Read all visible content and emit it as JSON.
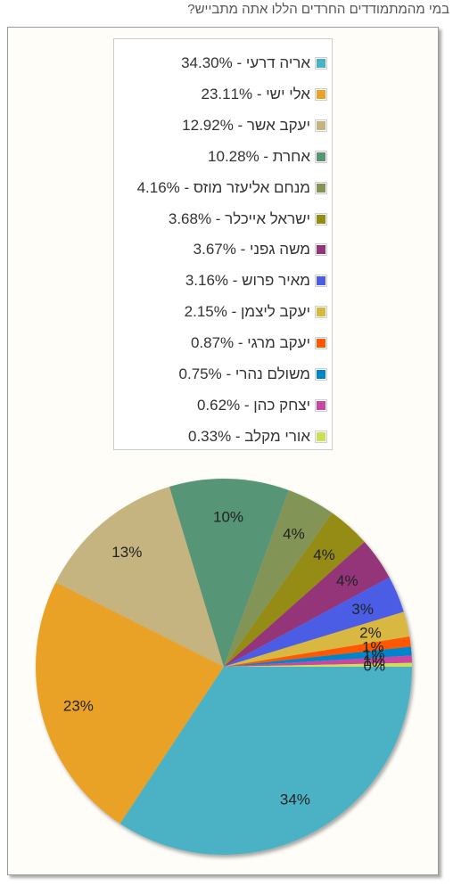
{
  "question": "במי מהמתמודדים החרדים הללו אתה מתבייש?",
  "chart_data": {
    "type": "pie",
    "title": "",
    "legend_position": "top",
    "slices": [
      {
        "name": "אריה דרעי",
        "value": 34.3,
        "label": "34%",
        "legend": "אריה דרעי - 34.30%",
        "color": "#4bb2c5"
      },
      {
        "name": "אלי ישי",
        "value": 23.11,
        "label": "23%",
        "legend": "אלי ישי - 23.11%",
        "color": "#eaa228"
      },
      {
        "name": "יעקב אשר",
        "value": 12.92,
        "label": "13%",
        "legend": "יעקב אשר - 12.92%",
        "color": "#c5b47f"
      },
      {
        "name": "אחרת",
        "value": 10.28,
        "label": "10%",
        "legend": "אחרת - 10.28%",
        "color": "#579575"
      },
      {
        "name": "מנחם אליעזר מוזס",
        "value": 4.16,
        "label": "4%",
        "legend": "מנחם אליעזר מוזס - 4.16%",
        "color": "#839557"
      },
      {
        "name": "ישראל אייכלר",
        "value": 3.68,
        "label": "4%",
        "legend": "ישראל אייכלר - 3.68%",
        "color": "#958c12"
      },
      {
        "name": "משה גפני",
        "value": 3.67,
        "label": "4%",
        "legend": "משה גפני - 3.67%",
        "color": "#953579"
      },
      {
        "name": "מאיר פרוש",
        "value": 3.16,
        "label": "3%",
        "legend": "מאיר פרוש - 3.16%",
        "color": "#4b5de4"
      },
      {
        "name": "יעקב ליצמן",
        "value": 2.15,
        "label": "2%",
        "legend": "יעקב ליצמן - 2.15%",
        "color": "#d8b83f"
      },
      {
        "name": "יעקב מרגי",
        "value": 0.87,
        "label": "1%",
        "legend": "יעקב מרגי - 0.87%",
        "color": "#ff5800"
      },
      {
        "name": "משולם נהרי",
        "value": 0.75,
        "label": "1%",
        "legend": "משולם נהרי - 0.75%",
        "color": "#0085cc"
      },
      {
        "name": "יצחק כהן",
        "value": 0.62,
        "label": "1%",
        "legend": "יצחק כהן - 0.62%",
        "color": "#c747a3"
      },
      {
        "name": "אורי מקלב",
        "value": 0.33,
        "label": "0%",
        "legend": "אורי מקלב - 0.33%",
        "color": "#cddf54"
      }
    ]
  }
}
